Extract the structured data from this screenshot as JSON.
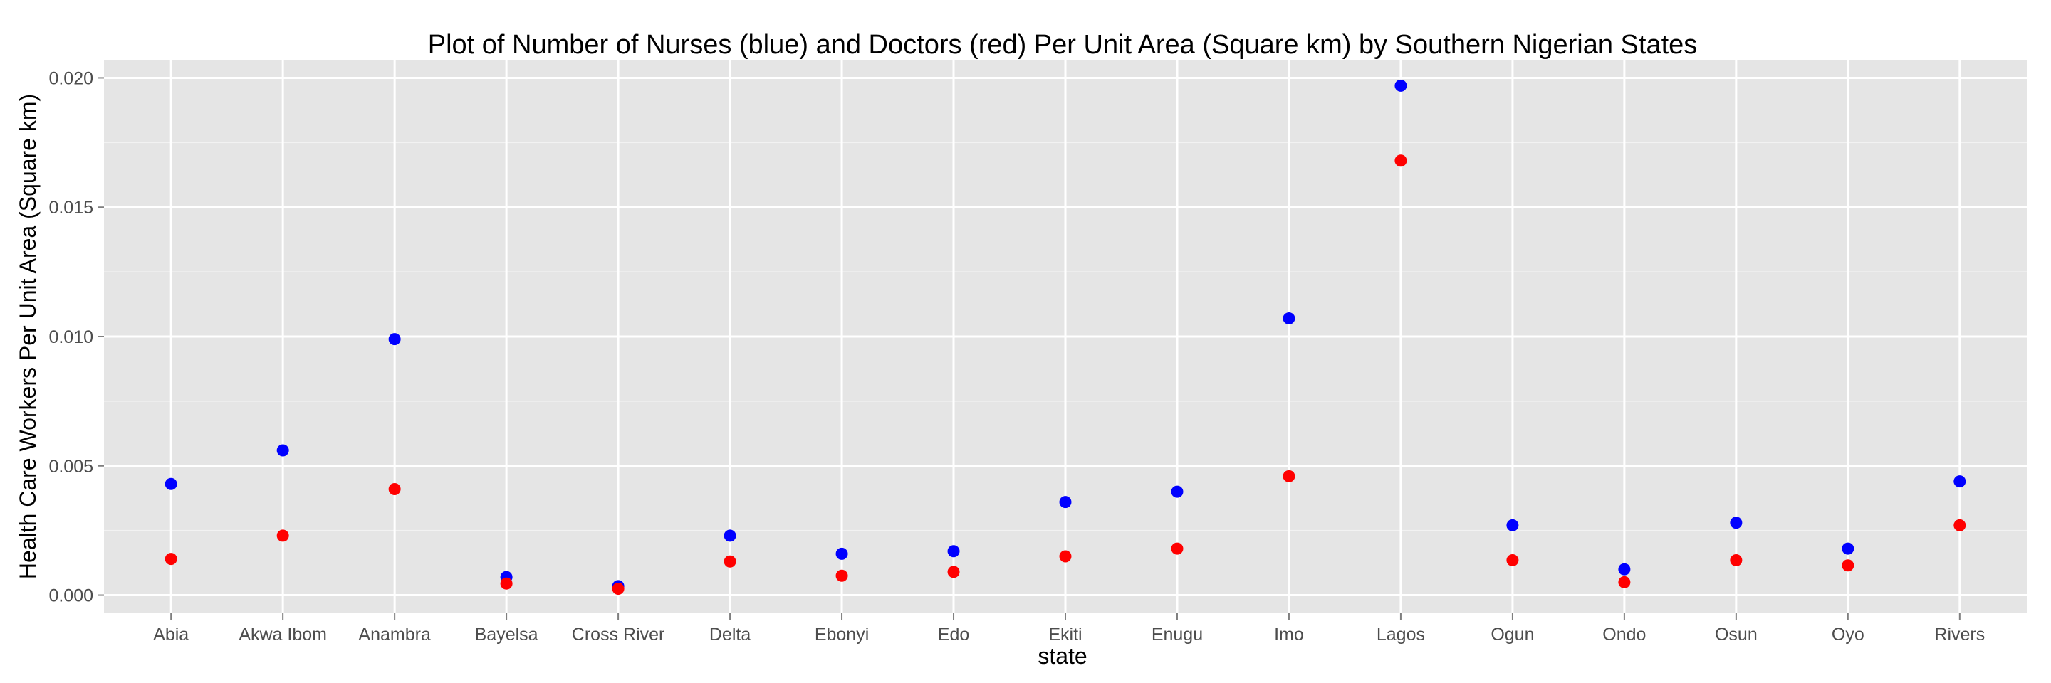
{
  "chart_data": {
    "type": "scatter",
    "title": "Plot of Number of Nurses (blue) and Doctors (red) Per Unit Area (Square km) by Southern Nigerian States",
    "xlabel": "state",
    "ylabel": "Health Care Workers Per Unit Area (Square km)",
    "categories": [
      "Abia",
      "Akwa Ibom",
      "Anambra",
      "Bayelsa",
      "Cross River",
      "Delta",
      "Ebonyi",
      "Edo",
      "Ekiti",
      "Enugu",
      "Imo",
      "Lagos",
      "Ogun",
      "Ondo",
      "Osun",
      "Oyo",
      "Rivers"
    ],
    "y_ticks": [
      "0.000",
      "0.005",
      "0.010",
      "0.015",
      "0.020"
    ],
    "ylim": [
      -0.0007,
      0.0207
    ],
    "grid": true,
    "series": [
      {
        "color": "#0000ff",
        "values": [
          0.0043,
          0.0056,
          0.0099,
          0.0007,
          0.00035,
          0.0023,
          0.0016,
          0.0017,
          0.0036,
          0.004,
          0.0107,
          0.0197,
          0.0027,
          0.001,
          0.0028,
          0.0018,
          0.0044
        ]
      },
      {
        "color": "#ff0000",
        "values": [
          0.0014,
          0.0023,
          0.0041,
          0.00045,
          0.00025,
          0.0013,
          0.00075,
          0.0009,
          0.0015,
          0.0018,
          0.0046,
          0.0168,
          0.00135,
          0.0005,
          0.00135,
          0.00115,
          0.0027
        ]
      }
    ]
  }
}
